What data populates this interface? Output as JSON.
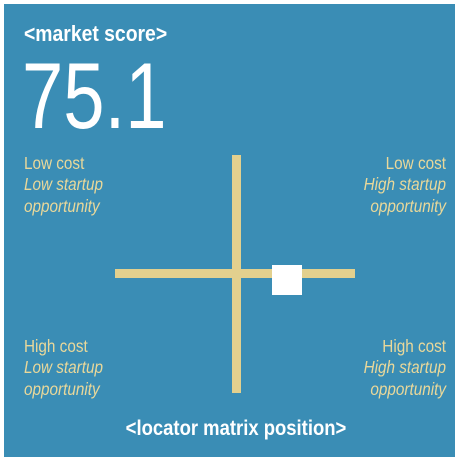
{
  "title": "<market score>",
  "score": "75.1",
  "quadrants": [
    {
      "lines": [
        "Low cost",
        "Low startup",
        "opportunity"
      ]
    },
    {
      "lines": [
        "Low cost",
        "High startup",
        "opportunity"
      ]
    },
    {
      "lines": [
        "High cost",
        "Low startup",
        "opportunity"
      ]
    },
    {
      "lines": [
        "High cost",
        "High startup",
        "opportunity"
      ]
    }
  ],
  "footer": "<locator matrix position>"
}
